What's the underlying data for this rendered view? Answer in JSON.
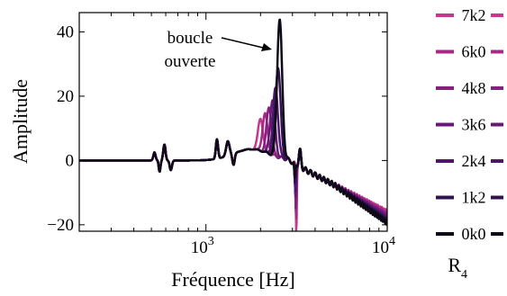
{
  "chart_data": {
    "type": "line",
    "xlabel": "Fréquence [Hz]",
    "ylabel": "Amplitude",
    "x_scale": "log",
    "xlim": [
      200,
      10000
    ],
    "ylim": [
      -22,
      46
    ],
    "xticks": [
      {
        "value": 1000,
        "base": "10",
        "exp": "3"
      },
      {
        "value": 10000,
        "base": "10",
        "exp": "4"
      }
    ],
    "yticks": [
      {
        "value": 40,
        "label": "40"
      },
      {
        "value": 20,
        "label": "20"
      },
      {
        "value": 0,
        "label": "0"
      },
      {
        "value": -20,
        "label": "−20"
      }
    ],
    "grid": false,
    "annotation": {
      "lines": [
        "boucle",
        "ouverte"
      ],
      "arrow_to": [
        2550,
        35
      ]
    },
    "legend": {
      "placement": "right",
      "title": "R",
      "title_sub": "4"
    },
    "series": [
      {
        "name": "7k2",
        "color": "#c2388f",
        "peak_f": 2000,
        "peak_a": 10.0,
        "notch_f": 3150,
        "notch_depth": 21,
        "rolloff": 0.0
      },
      {
        "name": "6k0",
        "color": "#a42a86",
        "peak_f": 2120,
        "peak_a": 12.0,
        "notch_f": 3140,
        "notch_depth": 17,
        "rolloff": 0.3
      },
      {
        "name": "4k8",
        "color": "#86207e",
        "peak_f": 2230,
        "peak_a": 14.5,
        "notch_f": 3130,
        "notch_depth": 14,
        "rolloff": 0.6
      },
      {
        "name": "3k6",
        "color": "#671a75",
        "peak_f": 2330,
        "peak_a": 17.0,
        "notch_f": 3120,
        "notch_depth": 11,
        "rolloff": 0.9
      },
      {
        "name": "2k4",
        "color": "#4c166a",
        "peak_f": 2420,
        "peak_a": 21.0,
        "notch_f": 3110,
        "notch_depth": 9,
        "rolloff": 1.2
      },
      {
        "name": "1k2",
        "color": "#30124f",
        "peak_f": 2500,
        "peak_a": 28.0,
        "notch_f": 3100,
        "notch_depth": 7,
        "rolloff": 1.5
      },
      {
        "name": "0k0",
        "color": "#0e0a18",
        "peak_f": 2550,
        "peak_a": 43.0,
        "notch_f": 3090,
        "notch_depth": 5,
        "rolloff": 1.8
      }
    ]
  }
}
